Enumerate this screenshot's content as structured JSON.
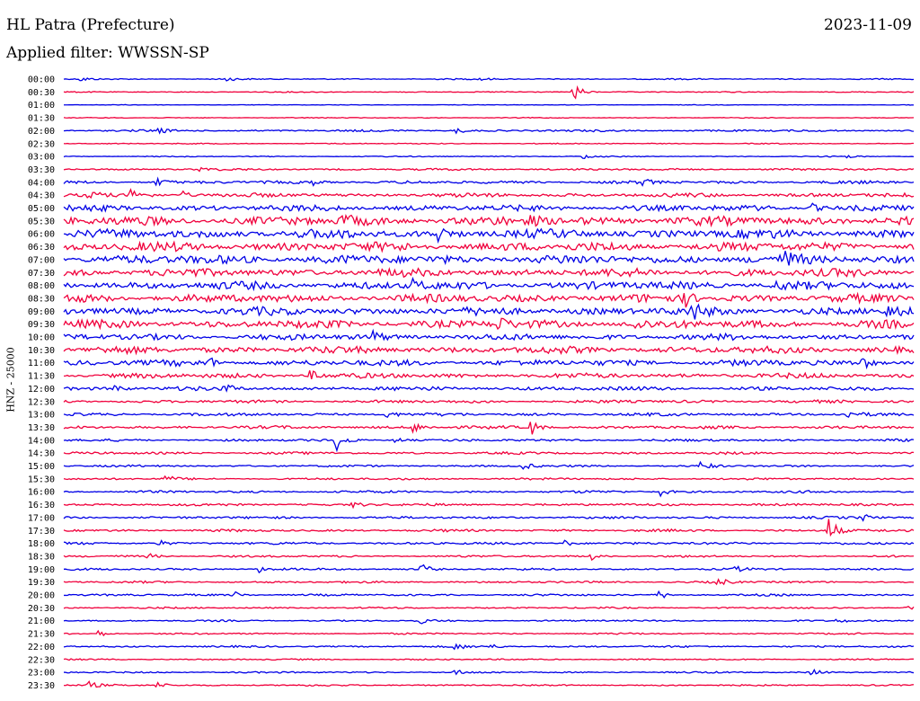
{
  "header": {
    "station": "HL Patra (Prefecture)",
    "date": "2023-11-09",
    "filter": "Applied filter: WWSSN-SP"
  },
  "side_label": "HNZ - 25000",
  "colors": {
    "even_trace": "#0000e6",
    "odd_trace": "#f0003c",
    "text": "#000000"
  },
  "chart_data": {
    "type": "line",
    "title": "HL Patra (Prefecture)",
    "subtitle": "Applied filter: WWSSN-SP",
    "ylabel": "HNZ - 25000",
    "xlabel": "",
    "trace_minutes": 30,
    "rows": [
      {
        "time": "00:00",
        "noise": 0.6,
        "events": [
          {
            "t": 0.02,
            "a": 3
          },
          {
            "t": 0.19,
            "a": 3
          },
          {
            "t": 0.49,
            "a": 2
          }
        ]
      },
      {
        "time": "00:30",
        "noise": 0.5,
        "events": [
          {
            "t": 0.6,
            "a": 11
          }
        ]
      },
      {
        "time": "01:00",
        "noise": 0.3,
        "events": []
      },
      {
        "time": "01:30",
        "noise": 0.4,
        "events": []
      },
      {
        "time": "02:00",
        "noise": 1.0,
        "events": [
          {
            "t": 0.11,
            "a": 3
          },
          {
            "t": 0.46,
            "a": 4
          }
        ]
      },
      {
        "time": "02:30",
        "noise": 0.5,
        "events": []
      },
      {
        "time": "03:00",
        "noise": 0.5,
        "events": [
          {
            "t": 0.61,
            "a": 3
          },
          {
            "t": 0.92,
            "a": 2
          }
        ]
      },
      {
        "time": "03:30",
        "noise": 1.0,
        "events": [
          {
            "t": 0.16,
            "a": 2
          }
        ]
      },
      {
        "time": "04:00",
        "noise": 1.5,
        "events": [
          {
            "t": 0.11,
            "a": 5
          },
          {
            "t": 0.29,
            "a": 4
          },
          {
            "t": 0.68,
            "a": 4
          }
        ]
      },
      {
        "time": "04:30",
        "noise": 2.0,
        "events": [
          {
            "t": 0.03,
            "a": 7
          },
          {
            "t": 0.08,
            "a": 8
          },
          {
            "t": 0.14,
            "a": 4
          }
        ]
      },
      {
        "time": "05:00",
        "noise": 3.0,
        "events": [
          {
            "t": 0.88,
            "a": 5
          }
        ]
      },
      {
        "time": "05:30",
        "noise": 4.5,
        "events": [
          {
            "t": 0.33,
            "a": 7
          },
          {
            "t": 0.55,
            "a": 6
          }
        ]
      },
      {
        "time": "06:00",
        "noise": 4.5,
        "events": [
          {
            "t": 0.44,
            "a": 7
          }
        ]
      },
      {
        "time": "06:30",
        "noise": 4.5,
        "events": []
      },
      {
        "time": "07:00",
        "noise": 4.5,
        "events": [
          {
            "t": 0.85,
            "a": 8
          }
        ]
      },
      {
        "time": "07:30",
        "noise": 4.0,
        "events": []
      },
      {
        "time": "08:00",
        "noise": 4.0,
        "events": [
          {
            "t": 0.41,
            "a": 6
          },
          {
            "t": 0.84,
            "a": 6
          }
        ]
      },
      {
        "time": "08:30",
        "noise": 4.0,
        "events": [
          {
            "t": 0.73,
            "a": 9
          }
        ]
      },
      {
        "time": "09:00",
        "noise": 4.0,
        "events": [
          {
            "t": 0.74,
            "a": 8
          },
          {
            "t": 0.97,
            "a": 6
          }
        ]
      },
      {
        "time": "09:30",
        "noise": 4.0,
        "events": [
          {
            "t": 0.51,
            "a": 9
          },
          {
            "t": 0.67,
            "a": 7
          }
        ]
      },
      {
        "time": "10:00",
        "noise": 3.0,
        "events": [
          {
            "t": 0.36,
            "a": 9
          }
        ]
      },
      {
        "time": "10:30",
        "noise": 3.5,
        "events": []
      },
      {
        "time": "11:00",
        "noise": 3.0,
        "events": [
          {
            "t": 0.17,
            "a": 6
          },
          {
            "t": 0.94,
            "a": 6
          }
        ]
      },
      {
        "time": "11:30",
        "noise": 2.5,
        "events": [
          {
            "t": 0.29,
            "a": 6
          }
        ]
      },
      {
        "time": "12:00",
        "noise": 2.0,
        "events": [
          {
            "t": 0.06,
            "a": 5
          },
          {
            "t": 0.19,
            "a": 5
          }
        ]
      },
      {
        "time": "12:30",
        "noise": 1.5,
        "events": []
      },
      {
        "time": "13:00",
        "noise": 1.5,
        "events": [
          {
            "t": 0.38,
            "a": 5
          },
          {
            "t": 0.92,
            "a": 4
          }
        ]
      },
      {
        "time": "13:30",
        "noise": 1.5,
        "events": [
          {
            "t": 0.41,
            "a": 7
          },
          {
            "t": 0.55,
            "a": 9
          }
        ]
      },
      {
        "time": "14:00",
        "noise": 1.2,
        "events": [
          {
            "t": 0.32,
            "a": 12
          },
          {
            "t": 0.39,
            "a": 4
          }
        ]
      },
      {
        "time": "14:30",
        "noise": 1.2,
        "events": []
      },
      {
        "time": "15:00",
        "noise": 1.0,
        "events": [
          {
            "t": 0.54,
            "a": 5
          },
          {
            "t": 0.75,
            "a": 7
          }
        ]
      },
      {
        "time": "15:30",
        "noise": 1.0,
        "events": [
          {
            "t": 0.12,
            "a": 4
          }
        ]
      },
      {
        "time": "16:00",
        "noise": 1.2,
        "events": [
          {
            "t": 0.7,
            "a": 6
          }
        ]
      },
      {
        "time": "16:30",
        "noise": 1.2,
        "events": [
          {
            "t": 0.34,
            "a": 4
          }
        ]
      },
      {
        "time": "17:00",
        "noise": 1.2,
        "events": [
          {
            "t": 0.94,
            "a": 4
          }
        ]
      },
      {
        "time": "17:30",
        "noise": 1.2,
        "events": [
          {
            "t": 0.9,
            "a": 16
          }
        ]
      },
      {
        "time": "18:00",
        "noise": 1.2,
        "events": [
          {
            "t": 0.11,
            "a": 4
          },
          {
            "t": 0.59,
            "a": 4
          }
        ]
      },
      {
        "time": "18:30",
        "noise": 1.0,
        "events": [
          {
            "t": 0.1,
            "a": 3
          },
          {
            "t": 0.62,
            "a": 4
          }
        ]
      },
      {
        "time": "19:00",
        "noise": 1.0,
        "events": [
          {
            "t": 0.23,
            "a": 4
          },
          {
            "t": 0.42,
            "a": 7
          },
          {
            "t": 0.79,
            "a": 3
          }
        ]
      },
      {
        "time": "19:30",
        "noise": 1.0,
        "events": [
          {
            "t": 0.77,
            "a": 5
          }
        ]
      },
      {
        "time": "20:00",
        "noise": 1.0,
        "events": [
          {
            "t": 0.2,
            "a": 4
          },
          {
            "t": 0.7,
            "a": 5
          }
        ]
      },
      {
        "time": "20:30",
        "noise": 0.8,
        "events": [
          {
            "t": 0.99,
            "a": 3
          }
        ]
      },
      {
        "time": "21:00",
        "noise": 0.8,
        "events": [
          {
            "t": 0.42,
            "a": 3
          },
          {
            "t": 0.91,
            "a": 3
          }
        ]
      },
      {
        "time": "21:30",
        "noise": 0.8,
        "events": [
          {
            "t": 0.04,
            "a": 4
          }
        ]
      },
      {
        "time": "22:00",
        "noise": 0.9,
        "events": [
          {
            "t": 0.46,
            "a": 4
          },
          {
            "t": 0.5,
            "a": 3
          }
        ]
      },
      {
        "time": "22:30",
        "noise": 0.7,
        "events": []
      },
      {
        "time": "23:00",
        "noise": 0.8,
        "events": [
          {
            "t": 0.46,
            "a": 3
          },
          {
            "t": 0.88,
            "a": 5
          }
        ]
      },
      {
        "time": "23:30",
        "noise": 0.8,
        "events": [
          {
            "t": 0.03,
            "a": 4
          },
          {
            "t": 0.11,
            "a": 4
          }
        ]
      }
    ]
  }
}
